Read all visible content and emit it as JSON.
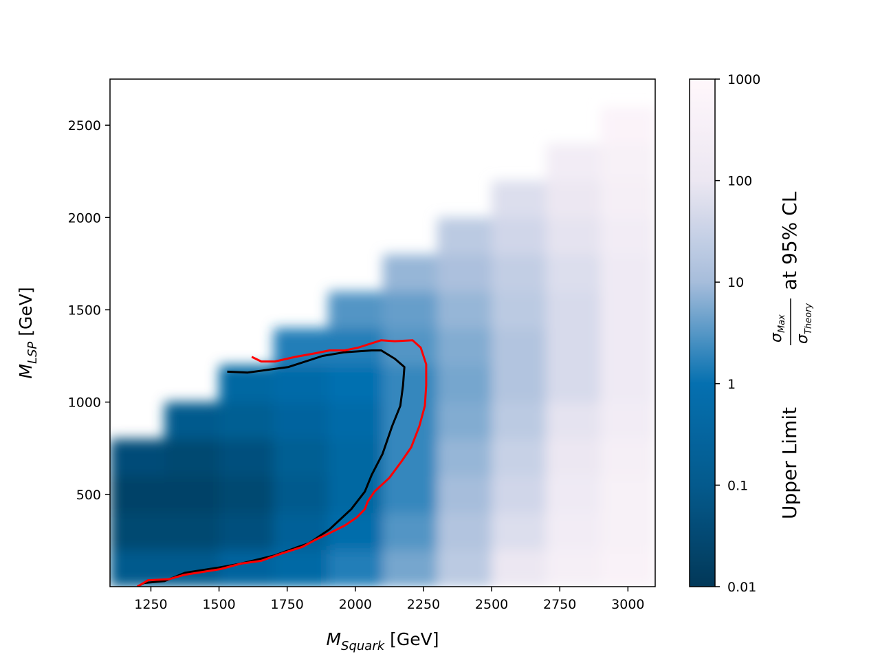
{
  "chart_data": {
    "type": "heatmap",
    "xlabel": {
      "symbol": "M",
      "sub": "Squark",
      "unit": "[GeV]"
    },
    "ylabel": {
      "symbol": "M",
      "sub": "LSP",
      "unit": "[GeV]"
    },
    "colorbar_label": {
      "before": "Upper Limit",
      "num": "σ",
      "num_sub": "Max",
      "den": "σ",
      "den_sub": "Theory",
      "after": "at 95% CL"
    },
    "xlim": [
      1100,
      3100
    ],
    "xticks": [
      1250,
      1500,
      1750,
      2000,
      2250,
      2500,
      2750,
      3000
    ],
    "ylim": [
      0,
      2750
    ],
    "yticks": [
      500,
      1000,
      1500,
      2000,
      2500
    ],
    "x": [
      1200,
      1400,
      1600,
      1800,
      2000,
      2200,
      2400,
      2600,
      2800,
      3000
    ],
    "y": [
      100,
      300,
      500,
      700,
      900,
      1100,
      1300,
      1500,
      1700,
      1900,
      2100,
      2300,
      2500
    ],
    "z": [
      [
        0.1,
        0.1,
        0.3,
        0.5,
        1.5,
        5,
        20,
        100,
        300,
        500
      ],
      [
        0.03,
        0.03,
        0.05,
        0.2,
        0.7,
        3,
        15,
        60,
        200,
        400
      ],
      [
        0.02,
        0.02,
        0.03,
        0.1,
        0.4,
        2,
        10,
        40,
        150,
        400
      ],
      [
        0.04,
        0.03,
        0.05,
        0.15,
        0.4,
        2,
        8,
        30,
        100,
        300
      ],
      [
        null,
        0.1,
        0.15,
        0.3,
        0.6,
        2,
        6,
        20,
        80,
        200
      ],
      [
        null,
        null,
        0.4,
        0.6,
        1,
        2,
        5,
        15,
        50,
        150
      ],
      [
        null,
        null,
        null,
        1.5,
        1.5,
        3,
        6,
        15,
        50,
        150
      ],
      [
        null,
        null,
        null,
        null,
        3,
        4,
        8,
        20,
        50,
        150
      ],
      [
        null,
        null,
        null,
        null,
        null,
        8,
        12,
        25,
        60,
        150
      ],
      [
        null,
        null,
        null,
        null,
        null,
        null,
        20,
        40,
        80,
        200
      ],
      [
        null,
        null,
        null,
        null,
        null,
        null,
        null,
        60,
        100,
        300
      ],
      [
        null,
        null,
        null,
        null,
        null,
        null,
        null,
        null,
        200,
        400
      ],
      [
        null,
        null,
        null,
        null,
        null,
        null,
        null,
        null,
        null,
        600
      ]
    ],
    "zlim": [
      0.01,
      1000
    ],
    "zscale": "log",
    "zticks": [
      0.01,
      0.1,
      1,
      10,
      100,
      1000
    ],
    "colormap": [
      "#023858",
      "#045a8d",
      "#0570b0",
      "#a6bddb",
      "#ece7f2",
      "#fff7fb"
    ],
    "contours": [
      {
        "color": "#000000",
        "x": [
          1530,
          1605,
          1755,
          1880,
          1960,
          2060,
          2095,
          2145,
          2180,
          2175,
          2165,
          2135,
          2100,
          2060,
          2035,
          1985,
          1905,
          1830,
          1780,
          1705,
          1580,
          1505,
          1375,
          1300,
          1225,
          1200
        ],
        "y": [
          1165,
          1160,
          1190,
          1250,
          1270,
          1280,
          1280,
          1235,
          1190,
          1090,
          980,
          870,
          720,
          605,
          515,
          420,
          310,
          235,
          210,
          170,
          125,
          105,
          75,
          30,
          20,
          0
        ]
      },
      {
        "color": "#ff0000",
        "x": [
          1620,
          1655,
          1705,
          1780,
          1855,
          1905,
          1960,
          2010,
          2095,
          2145,
          2210,
          2240,
          2260,
          2260,
          2255,
          2235,
          2205,
          2170,
          2125,
          2070,
          2045,
          2035,
          2005,
          1960,
          1905,
          1855,
          1805,
          1730,
          1655,
          1580,
          1505,
          1375,
          1315,
          1240,
          1200
        ],
        "y": [
          1245,
          1220,
          1220,
          1245,
          1265,
          1280,
          1280,
          1295,
          1335,
          1330,
          1335,
          1295,
          1205,
          1090,
          980,
          870,
          755,
          680,
          590,
          515,
          460,
          420,
          375,
          330,
          290,
          255,
          215,
          180,
          140,
          125,
          95,
          65,
          40,
          35,
          0
        ]
      }
    ]
  }
}
